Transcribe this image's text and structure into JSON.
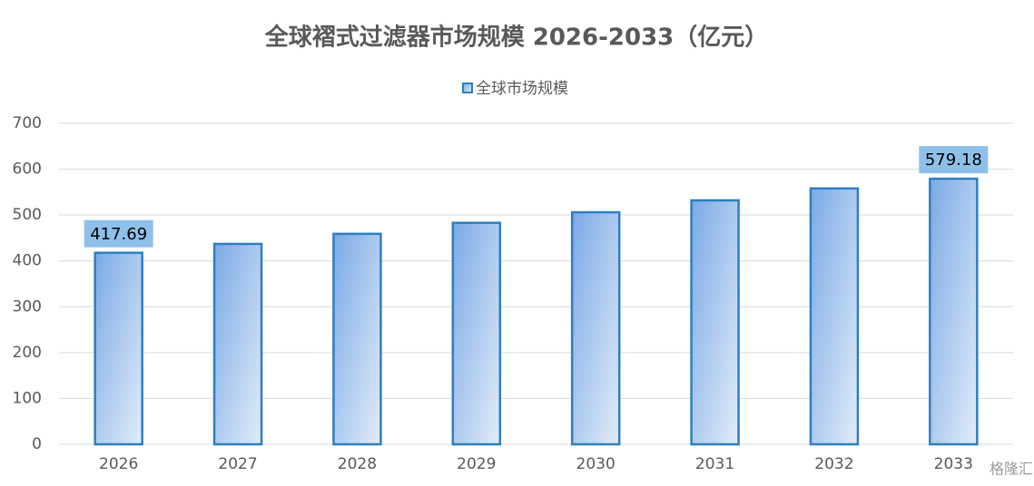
{
  "chart_data": {
    "type": "bar",
    "title": "全球褶式过滤器市场规模 2026-2033（亿元）",
    "categories": [
      "2026",
      "2027",
      "2028",
      "2029",
      "2030",
      "2031",
      "2032",
      "2033"
    ],
    "series": [
      {
        "name": "全球市场规模",
        "color": "#2e7fc0",
        "values": [
          417.69,
          437,
          459,
          483,
          506,
          532,
          558,
          579.18
        ],
        "value_labels": [
          "417.69",
          null,
          null,
          null,
          null,
          null,
          null,
          "579.18"
        ]
      }
    ],
    "ylim": [
      0,
      700
    ],
    "yticks": [
      0,
      100,
      200,
      300,
      400,
      500,
      600,
      700
    ],
    "grid": true,
    "legend": "top",
    "watermark": "格隆汇"
  }
}
